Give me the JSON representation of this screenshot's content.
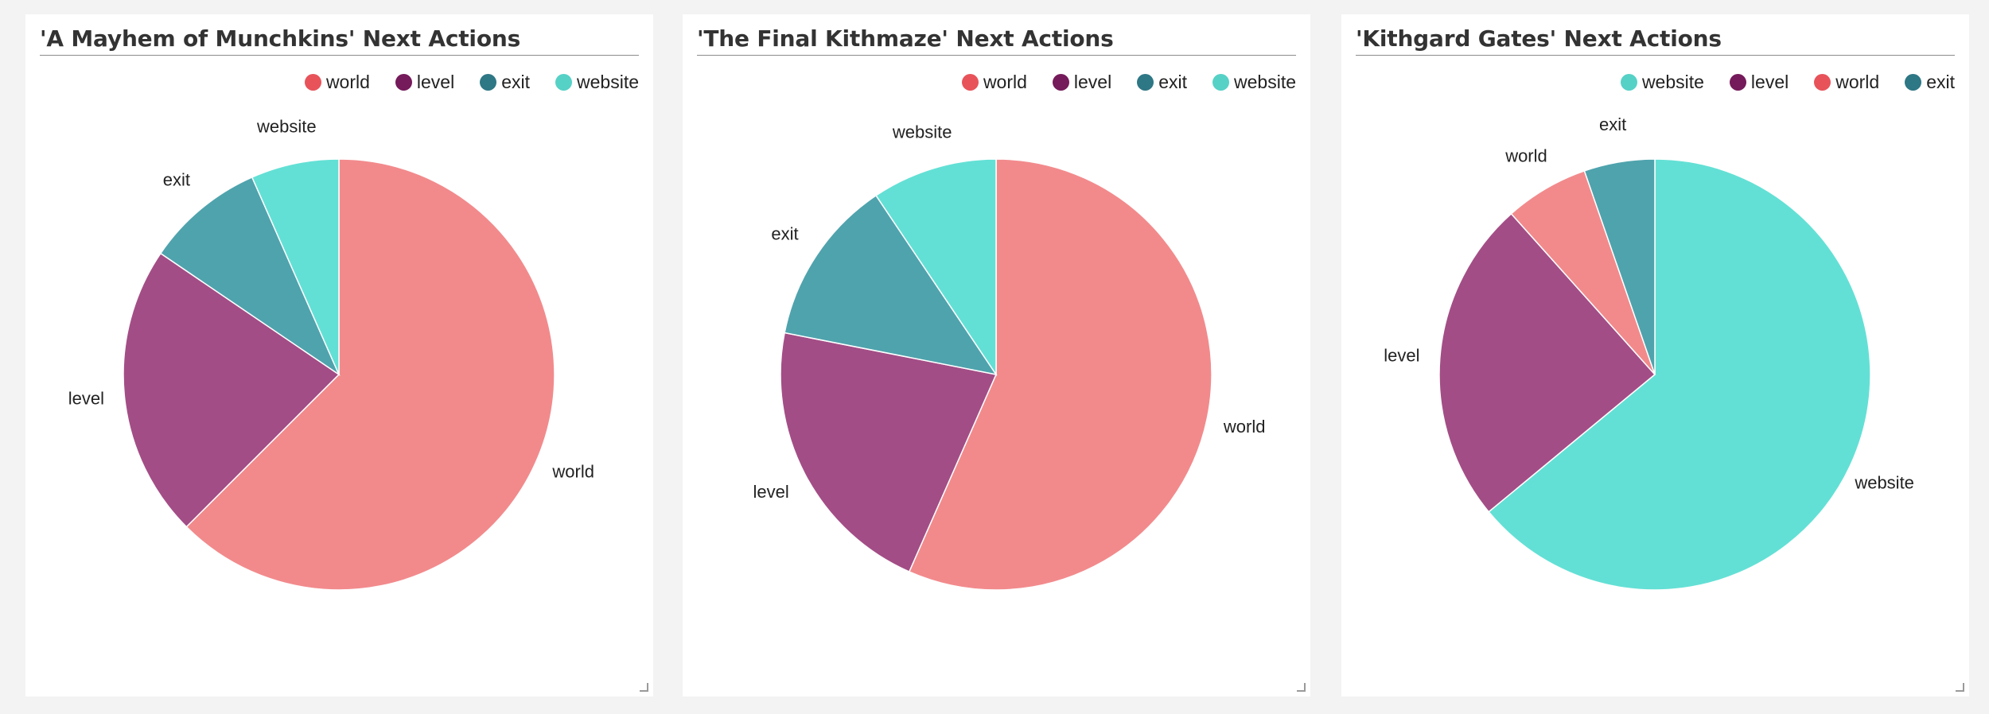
{
  "chart_data": [
    {
      "type": "pie",
      "title": "'A Mayhem of Munchkins' Next Actions",
      "legend_position": "top-right",
      "slices": [
        {
          "label": "world",
          "value": 62.5,
          "color": "#f28a8c"
        },
        {
          "label": "level",
          "value": 22.0,
          "color": "#a34d86"
        },
        {
          "label": "exit",
          "value": 8.9,
          "color": "#4fa3ad"
        },
        {
          "label": "website",
          "value": 6.6,
          "color": "#63e0d5"
        }
      ],
      "legend": [
        {
          "label": "world",
          "color": "#e8535a"
        },
        {
          "label": "level",
          "color": "#751a5a"
        },
        {
          "label": "exit",
          "color": "#2e7785"
        },
        {
          "label": "website",
          "color": "#56d1c6"
        }
      ]
    },
    {
      "type": "pie",
      "title": "'The Final Kithmaze' Next Actions",
      "legend_position": "top-right",
      "slices": [
        {
          "label": "world",
          "value": 56.6,
          "color": "#f28a8c"
        },
        {
          "label": "level",
          "value": 21.5,
          "color": "#a34d86"
        },
        {
          "label": "exit",
          "value": 12.5,
          "color": "#4fa3ad"
        },
        {
          "label": "website",
          "value": 9.4,
          "color": "#63e0d5"
        }
      ],
      "legend": [
        {
          "label": "world",
          "color": "#e8535a"
        },
        {
          "label": "level",
          "color": "#751a5a"
        },
        {
          "label": "exit",
          "color": "#2e7785"
        },
        {
          "label": "website",
          "color": "#56d1c6"
        }
      ]
    },
    {
      "type": "pie",
      "title": "'Kithgard Gates' Next Actions",
      "legend_position": "top-right",
      "slices": [
        {
          "label": "website",
          "value": 64.0,
          "color": "#63e0d5"
        },
        {
          "label": "level",
          "value": 24.4,
          "color": "#a34d86"
        },
        {
          "label": "world",
          "value": 6.3,
          "color": "#f28a8c"
        },
        {
          "label": "exit",
          "value": 5.3,
          "color": "#4fa3ad"
        }
      ],
      "legend": [
        {
          "label": "website",
          "color": "#56d1c6"
        },
        {
          "label": "level",
          "color": "#751a5a"
        },
        {
          "label": "world",
          "color": "#e8535a"
        },
        {
          "label": "exit",
          "color": "#2e7785"
        }
      ]
    }
  ]
}
